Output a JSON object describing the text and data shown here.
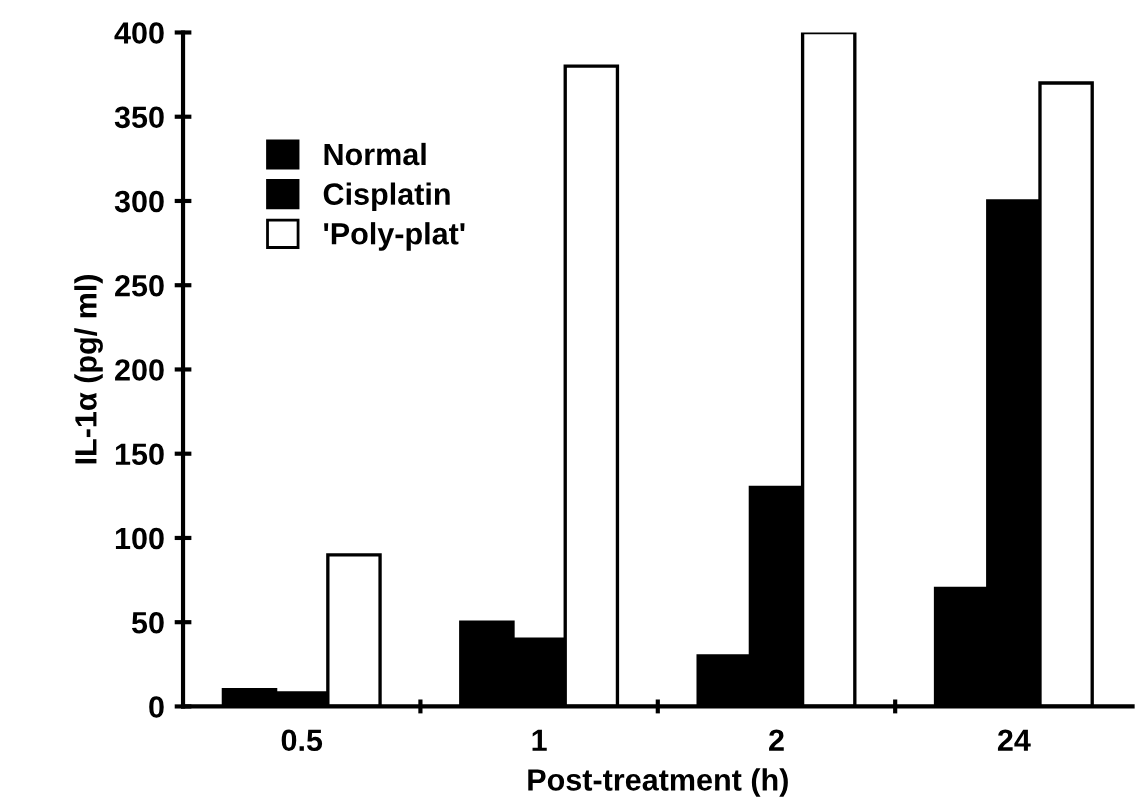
{
  "chart_data": {
    "type": "bar",
    "xlabel": "Post-treatment (h)",
    "ylabel": "IL-1α (pg/ ml)",
    "categories": [
      "0.5",
      "1",
      "2",
      "24"
    ],
    "series": [
      {
        "name": "Normal",
        "color": "#000000",
        "values": [
          10,
          50,
          30,
          70
        ]
      },
      {
        "name": "Cisplatin",
        "color": "#000000",
        "values": [
          8,
          40,
          130,
          300
        ]
      },
      {
        "name": "'Poly-plat'",
        "color": "#ffffff",
        "values": [
          90,
          380,
          400,
          370
        ]
      }
    ],
    "ylim": [
      0,
      400
    ],
    "yticks": [
      0,
      50,
      100,
      150,
      200,
      250,
      300,
      350,
      400
    ],
    "grid": false,
    "legend": "top left"
  }
}
